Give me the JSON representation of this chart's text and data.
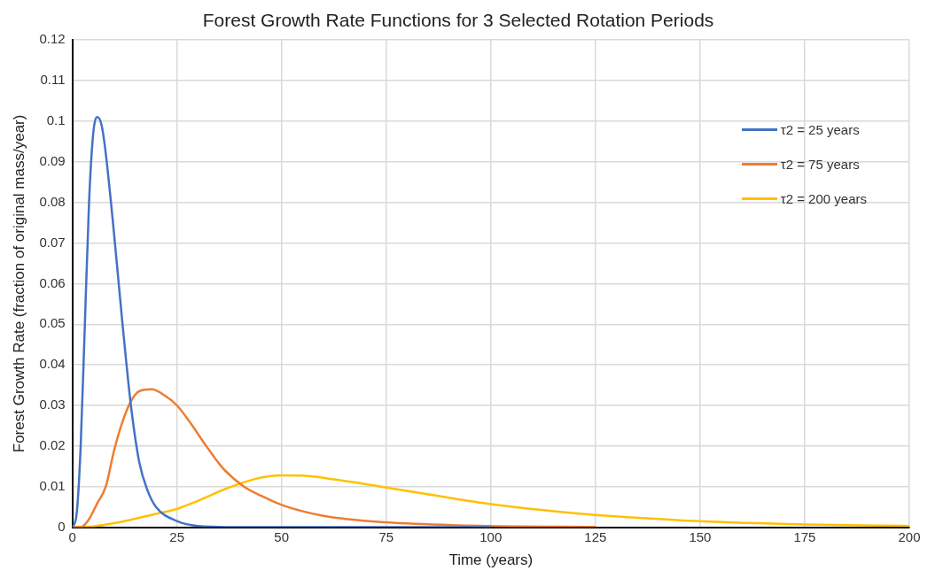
{
  "chart_data": {
    "type": "line",
    "title": "Forest Growth Rate Functions for 3 Selected Rotation Periods",
    "xlabel": "Time (years)",
    "ylabel": "Forest Growth Rate (fraction of original mass/year)",
    "xlim": [
      0,
      200
    ],
    "xticks": [
      0,
      25,
      50,
      75,
      100,
      125,
      150,
      175,
      200
    ],
    "ylim": [
      0,
      0.12
    ],
    "yticks": [
      0,
      0.01,
      0.02,
      0.03,
      0.04,
      0.05,
      0.06,
      0.07,
      0.08,
      0.09,
      0.1,
      0.11,
      0.12
    ],
    "grid": true,
    "legend": "top right",
    "marker": "none",
    "line_style": "solid",
    "series": [
      {
        "name": "τ2 = 25 years",
        "color": "#4472c4",
        "x": [
          0,
          1,
          2,
          3,
          4,
          5,
          6,
          7,
          8,
          10,
          12,
          14,
          16,
          18,
          20,
          25,
          30,
          40,
          60,
          100
        ],
        "values": [
          0,
          0.003,
          0.02,
          0.05,
          0.08,
          0.097,
          0.101,
          0.099,
          0.092,
          0.072,
          0.05,
          0.03,
          0.016,
          0.009,
          0.005,
          0.0015,
          0.0003,
          0,
          0,
          0
        ]
      },
      {
        "name": "τ2 = 75 years",
        "color": "#ed7d31",
        "x": [
          0,
          2,
          4,
          6,
          8,
          10,
          12,
          14,
          16,
          19,
          22,
          25,
          28,
          32,
          36,
          41,
          45,
          50,
          60,
          75,
          100,
          125
        ],
        "values": [
          0,
          0,
          0.002,
          0.006,
          0.01,
          0.019,
          0.026,
          0.031,
          0.0335,
          0.034,
          0.0325,
          0.03,
          0.026,
          0.02,
          0.0145,
          0.01,
          0.0078,
          0.0055,
          0.0028,
          0.0012,
          0.0003,
          0.0001
        ]
      },
      {
        "name": "τ2 = 200 years",
        "color": "#ffc000",
        "x": [
          0,
          5,
          12.5,
          20,
          25,
          30,
          37.5,
          45,
          50,
          55,
          62.5,
          75,
          87.5,
          100,
          112.5,
          125,
          150,
          175,
          200
        ],
        "values": [
          0,
          0.0002,
          0.0015,
          0.0033,
          0.0045,
          0.0065,
          0.0098,
          0.0122,
          0.0128,
          0.0127,
          0.0118,
          0.0098,
          0.0077,
          0.0057,
          0.0042,
          0.003,
          0.0015,
          0.0007,
          0.0003
        ]
      }
    ]
  }
}
